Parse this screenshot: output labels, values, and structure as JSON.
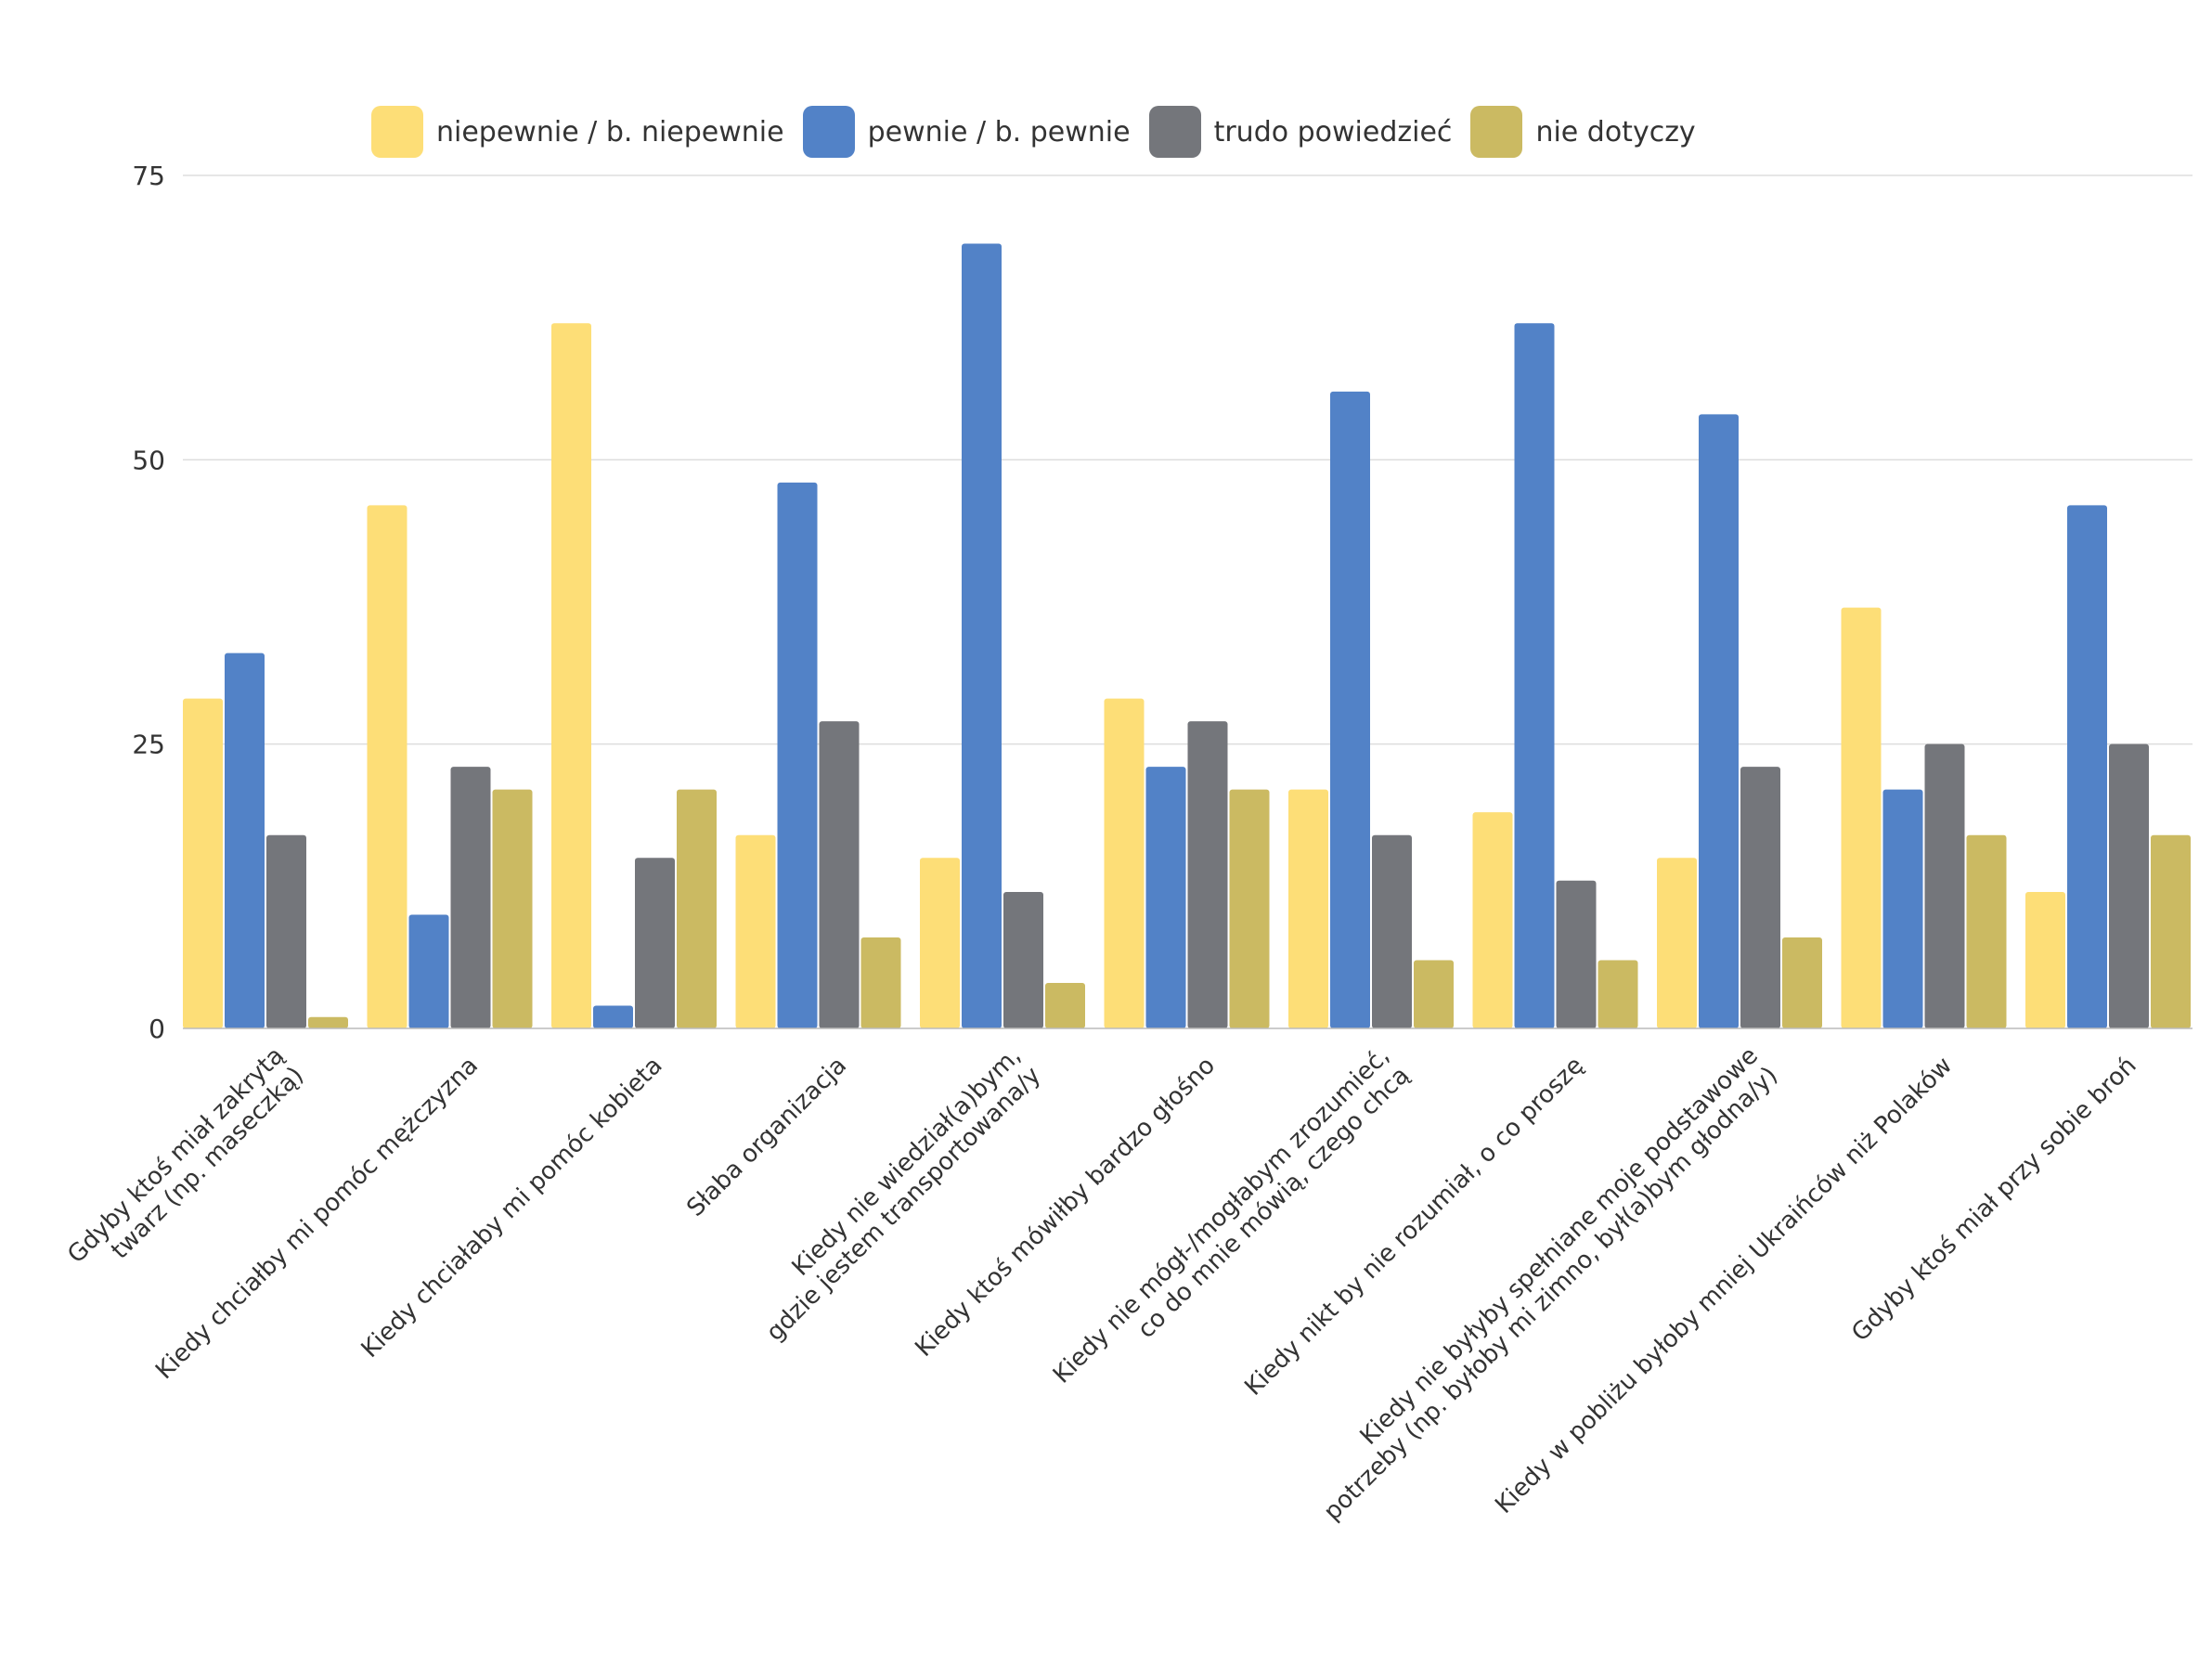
{
  "chart_data": {
    "type": "bar",
    "categories": [
      [
        "Gdyby ktoś miał zakrytą",
        "twarz (np. maseczką)"
      ],
      [
        "Kiedy chciałby mi pomóc mężczyzna"
      ],
      [
        "Kiedy chciałaby mi pomóc kobieta"
      ],
      [
        "Słaba organizacja"
      ],
      [
        "Kiedy nie wiedział(a)bym,",
        "gdzie jestem transportowana/y"
      ],
      [
        "Kiedy ktoś mówiłby bardzo głośno"
      ],
      [
        "Kiedy nie mógł-/mogłabym zrozumieć,",
        "co do mnie mówią, czego chcą"
      ],
      [
        "Kiedy nikt by nie rozumiał, o co proszę"
      ],
      [
        "Kiedy nie byłyby spełniane moje podstawowe",
        "potrzeby (np. byłoby mi zimno, był(a)bym głodna/y)"
      ],
      [
        "Kiedy w pobliżu byłoby mniej Ukraińców niż Polaków"
      ],
      [
        "Gdyby ktoś miał przy sobie broń"
      ]
    ],
    "series": [
      {
        "name": "niepewnie / b. niepewnie",
        "color": "#FDDE77",
        "values": [
          29,
          46,
          62,
          17,
          15,
          29,
          21,
          19,
          15,
          37,
          12
        ]
      },
      {
        "name": "pewnie / b. pewnie",
        "color": "#5282C7",
        "values": [
          33,
          10,
          2,
          48,
          69,
          23,
          56,
          62,
          54,
          21,
          46
        ]
      },
      {
        "name": "trudo powiedzieć",
        "color": "#74767B",
        "values": [
          17,
          23,
          15,
          27,
          12,
          27,
          17,
          13,
          23,
          25,
          25
        ]
      },
      {
        "name": "nie dotyczy",
        "color": "#CBBA62",
        "values": [
          1,
          21,
          21,
          8,
          4,
          21,
          6,
          6,
          8,
          17,
          17
        ]
      }
    ],
    "yticks": [
      0,
      25,
      50,
      75
    ],
    "ylim": [
      0,
      75
    ],
    "grid": true,
    "legend_position": "top"
  }
}
